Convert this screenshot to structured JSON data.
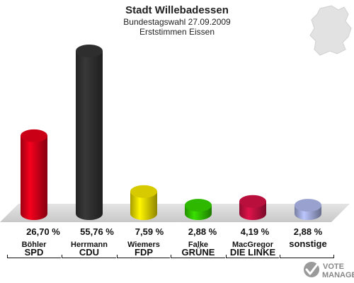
{
  "chart_data": {
    "type": "bar",
    "title": "Stadt Willebadessen",
    "subtitle": "Bundestagswahl 27.09.2009",
    "subtitle2": "Erststimmen Eissen",
    "categories": [
      "SPD",
      "CDU",
      "FDP",
      "GRÜNE",
      "DIE LINKE",
      "sonstige"
    ],
    "candidates": [
      "Böhler",
      "Herrmann",
      "Wiemers",
      "Falke",
      "MacGregor",
      ""
    ],
    "values": [
      26.7,
      55.76,
      7.59,
      2.88,
      4.19,
      2.88
    ],
    "value_labels": [
      "26,70 %",
      "55,76 %",
      "7,59 %",
      "2,88 %",
      "4,19 %",
      "2,88 %"
    ],
    "colors": [
      "#e0001a",
      "#333333",
      "#f0e000",
      "#33cc00",
      "#cc1144",
      "#aab4e6"
    ],
    "ylim": [
      0,
      55.76
    ],
    "grid": false,
    "legend": "none"
  },
  "branding": {
    "logo_line1": "VOTE",
    "logo_line2": "MANAGER",
    "map_icon": "germany-map-icon",
    "logo_icon": "vote-manager-logo-icon"
  }
}
